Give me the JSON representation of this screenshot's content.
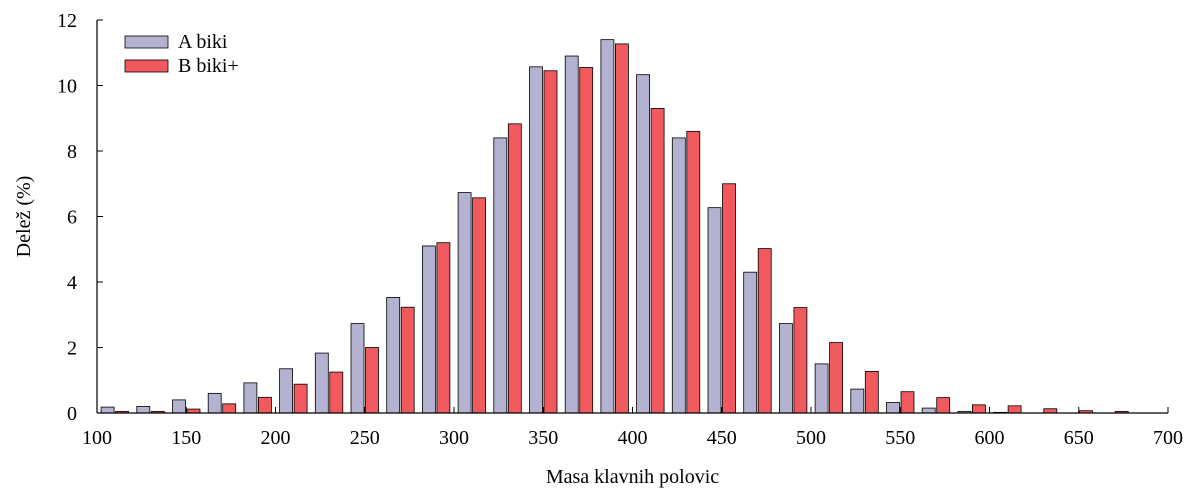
{
  "chart_data": {
    "type": "bar",
    "xlabel": "Masa klavnih polovic",
    "ylabel": "Delež (%)",
    "xlim": [
      100,
      700
    ],
    "ylim": [
      0,
      12
    ],
    "xticks": [
      100,
      150,
      200,
      250,
      300,
      350,
      400,
      450,
      500,
      550,
      600,
      650,
      700
    ],
    "yticks": [
      0,
      2,
      4,
      6,
      8,
      10,
      12
    ],
    "legend_position": "top-left",
    "grid": false,
    "x": [
      110,
      130,
      150,
      170,
      190,
      210,
      230,
      250,
      270,
      290,
      310,
      330,
      350,
      370,
      390,
      410,
      430,
      450,
      470,
      490,
      510,
      530,
      550,
      570,
      590,
      610,
      630,
      650,
      670,
      690
    ],
    "series": [
      {
        "name": "A biki",
        "color": "#b3b3d1",
        "values": [
          0.18,
          0.2,
          0.4,
          0.6,
          0.92,
          1.35,
          1.83,
          2.73,
          3.53,
          5.1,
          6.73,
          8.4,
          10.57,
          10.9,
          11.4,
          10.33,
          8.4,
          6.27,
          4.3,
          2.73,
          1.5,
          0.73,
          0.32,
          0.15,
          0.05,
          0.02,
          0.0,
          0.0,
          0.0,
          0.0
        ]
      },
      {
        "name": "B biki+",
        "color": "#f05a5f",
        "values": [
          0.05,
          0.05,
          0.12,
          0.28,
          0.48,
          0.88,
          1.25,
          2.0,
          3.23,
          5.2,
          6.57,
          8.83,
          10.45,
          10.55,
          11.27,
          9.3,
          8.6,
          7.0,
          5.02,
          3.22,
          2.15,
          1.27,
          0.65,
          0.47,
          0.25,
          0.22,
          0.13,
          0.07,
          0.05,
          0.0
        ]
      }
    ]
  }
}
